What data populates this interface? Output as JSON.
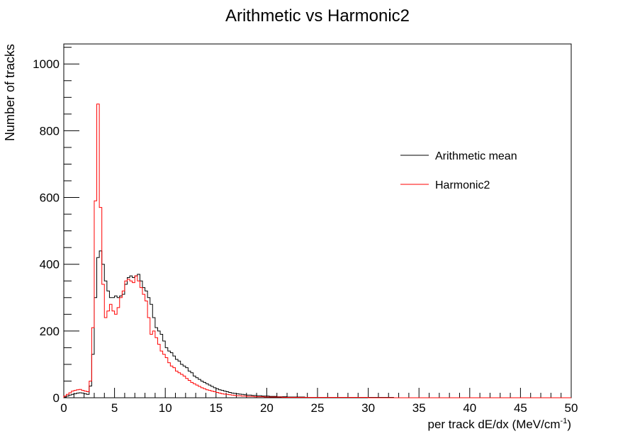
{
  "chart_data": {
    "type": "histogram",
    "title": "Arithmetic vs Harmonic2",
    "xlabel": "per track dE/dx (MeV/cm",
    "xlabel_sup": "-1",
    "xlabel_end": ")",
    "ylabel": "Number of tracks",
    "xlim": [
      0,
      50
    ],
    "ylim": [
      0,
      1060
    ],
    "x_ticks": [
      0,
      5,
      10,
      15,
      20,
      25,
      30,
      35,
      40,
      45,
      50
    ],
    "x_tick_labels": [
      "0",
      "5",
      "10",
      "15",
      "20",
      "25",
      "30",
      "35",
      "40",
      "45",
      "50"
    ],
    "y_ticks": [
      0,
      200,
      400,
      600,
      800,
      1000
    ],
    "y_tick_labels": [
      "0",
      "200",
      "400",
      "600",
      "800",
      "1000"
    ],
    "grid": false,
    "legend_position": "upper-right",
    "bin_width": 0.25,
    "series": [
      {
        "name": "Arithmetic mean",
        "color": "#000000",
        "values": [
          2,
          5,
          8,
          10,
          12,
          14,
          15,
          14,
          12,
          10,
          35,
          130,
          300,
          420,
          440,
          400,
          350,
          320,
          300,
          300,
          305,
          300,
          305,
          310,
          340,
          360,
          365,
          360,
          365,
          370,
          350,
          330,
          320,
          300,
          280,
          240,
          210,
          200,
          190,
          170,
          150,
          140,
          135,
          125,
          115,
          110,
          100,
          95,
          90,
          80,
          75,
          65,
          60,
          55,
          50,
          46,
          42,
          38,
          34,
          30,
          27,
          24,
          22,
          20,
          18,
          16,
          14,
          13,
          12,
          11,
          10,
          9,
          8,
          8,
          7,
          7,
          6,
          6,
          5,
          5,
          5,
          4,
          4,
          4,
          3,
          3,
          3,
          3,
          2,
          2,
          2,
          2,
          2,
          2,
          2,
          1,
          1,
          1,
          1,
          1,
          1,
          1,
          1,
          1,
          1,
          1,
          1,
          1,
          1,
          1,
          1,
          1,
          1,
          1,
          1,
          1,
          1,
          1,
          1,
          1,
          1,
          1,
          1,
          1,
          1,
          1,
          1,
          1,
          1,
          1,
          0,
          0,
          0,
          0,
          0,
          0,
          0,
          0,
          0,
          0,
          0,
          0,
          0,
          0,
          0,
          0,
          0,
          0,
          0,
          0,
          0,
          0,
          0,
          0,
          0,
          0,
          0,
          0,
          0,
          0,
          0,
          0,
          0,
          0,
          0,
          0,
          0,
          0,
          0,
          0,
          0,
          0,
          0,
          0,
          0,
          0,
          0,
          0,
          0,
          0,
          0,
          0,
          0,
          0,
          0,
          0,
          0,
          0,
          0,
          0,
          0,
          0,
          0,
          0,
          0,
          0,
          0,
          0,
          0,
          0
        ]
      },
      {
        "name": "Harmonic2",
        "color": "#ff0000",
        "values": [
          5,
          10,
          15,
          20,
          22,
          24,
          25,
          22,
          20,
          18,
          50,
          210,
          590,
          880,
          570,
          340,
          240,
          260,
          280,
          260,
          250,
          270,
          300,
          320,
          350,
          355,
          350,
          345,
          365,
          350,
          330,
          310,
          290,
          240,
          190,
          200,
          180,
          160,
          140,
          130,
          120,
          105,
          95,
          90,
          80,
          75,
          70,
          65,
          58,
          52,
          46,
          42,
          38,
          34,
          30,
          27,
          24,
          22,
          20,
          18,
          16,
          14,
          12,
          11,
          10,
          9,
          8,
          7,
          6,
          6,
          5,
          5,
          4,
          4,
          4,
          3,
          3,
          3,
          3,
          2,
          2,
          2,
          2,
          2,
          2,
          2,
          1,
          1,
          1,
          1,
          1,
          1,
          1,
          1,
          1,
          1,
          1,
          1,
          1,
          1,
          1,
          1,
          1,
          1,
          1,
          1,
          1,
          1,
          1,
          1,
          1,
          1,
          1,
          1,
          1,
          1,
          1,
          1,
          1,
          1,
          0,
          0,
          0,
          0,
          0,
          0,
          0,
          0,
          0,
          0,
          0,
          0,
          0,
          0,
          0,
          0,
          0,
          0,
          0,
          0,
          0,
          0,
          0,
          0,
          0,
          0,
          0,
          0,
          0,
          0,
          0,
          0,
          0,
          0,
          0,
          0,
          0,
          0,
          0,
          0,
          0,
          0,
          0,
          0,
          0,
          0,
          0,
          0,
          0,
          0,
          0,
          0,
          0,
          0,
          0,
          0,
          0,
          0,
          0,
          0,
          0,
          0,
          0,
          0,
          0,
          0,
          0,
          0,
          0,
          0,
          0,
          0,
          0,
          0,
          0,
          0,
          0,
          0,
          0,
          0
        ]
      }
    ]
  }
}
